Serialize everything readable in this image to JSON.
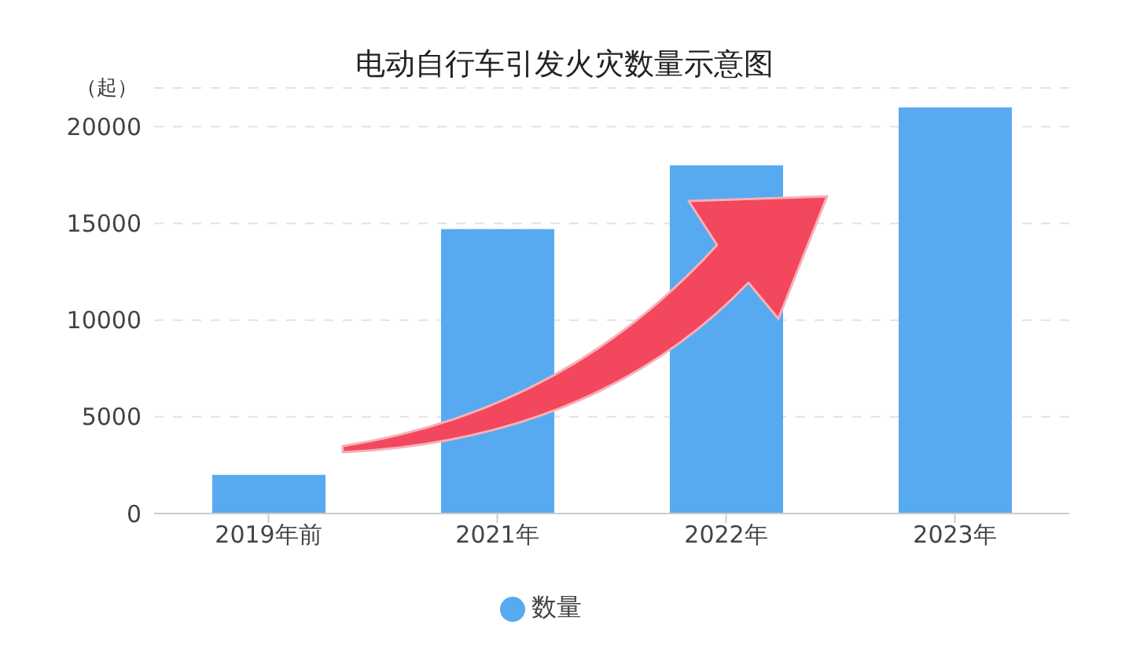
{
  "chart_data": {
    "type": "bar",
    "title": "电动自行车引发火灾数量示意图",
    "ylabel": "（起）",
    "categories": [
      "2019年前",
      "2021年",
      "2022年",
      "2023年"
    ],
    "series": [
      {
        "name": "数量",
        "color": "#58aaf0",
        "values": [
          2000,
          14700,
          18000,
          21000
        ]
      }
    ],
    "ylim": [
      0,
      22000
    ],
    "yticks": [
      0,
      5000,
      10000,
      15000,
      20000
    ],
    "grid": "y",
    "legend": "bottom"
  }
}
